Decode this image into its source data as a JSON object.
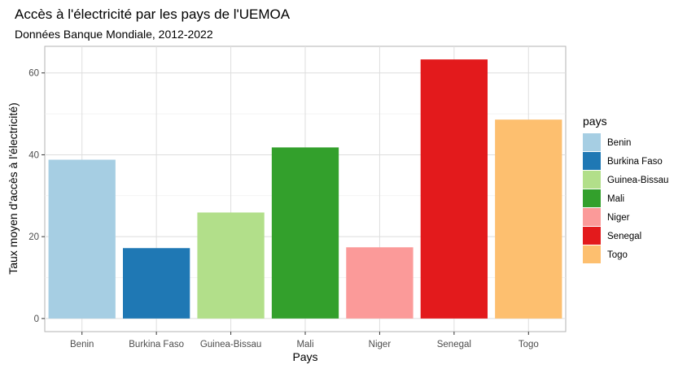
{
  "chart_data": {
    "type": "bar",
    "title": "Accès à l'électricité par les pays de l'UEMOA",
    "subtitle": "Données Banque Mondiale, 2012-2022",
    "xlabel": "Pays",
    "ylabel": "Taux moyen d'accès à l'électricité)",
    "categories": [
      "Benin",
      "Burkina Faso",
      "Guinea-Bissau",
      "Mali",
      "Niger",
      "Senegal",
      "Togo"
    ],
    "values": [
      38.8,
      17.2,
      25.9,
      41.8,
      17.4,
      63.3,
      48.6
    ],
    "colors": [
      "#a6cee3",
      "#1f78b4",
      "#b2df8a",
      "#33a02c",
      "#fb9a99",
      "#e31a1c",
      "#fdbf6f"
    ],
    "ylim": [
      -3.2,
      66.5
    ],
    "yticks": [
      0,
      20,
      40,
      60
    ],
    "grid": true,
    "legend": {
      "title": "pays",
      "position": "right",
      "entries": [
        "Benin",
        "Burkina Faso",
        "Guinea-Bissau",
        "Mali",
        "Niger",
        "Senegal",
        "Togo"
      ]
    }
  }
}
